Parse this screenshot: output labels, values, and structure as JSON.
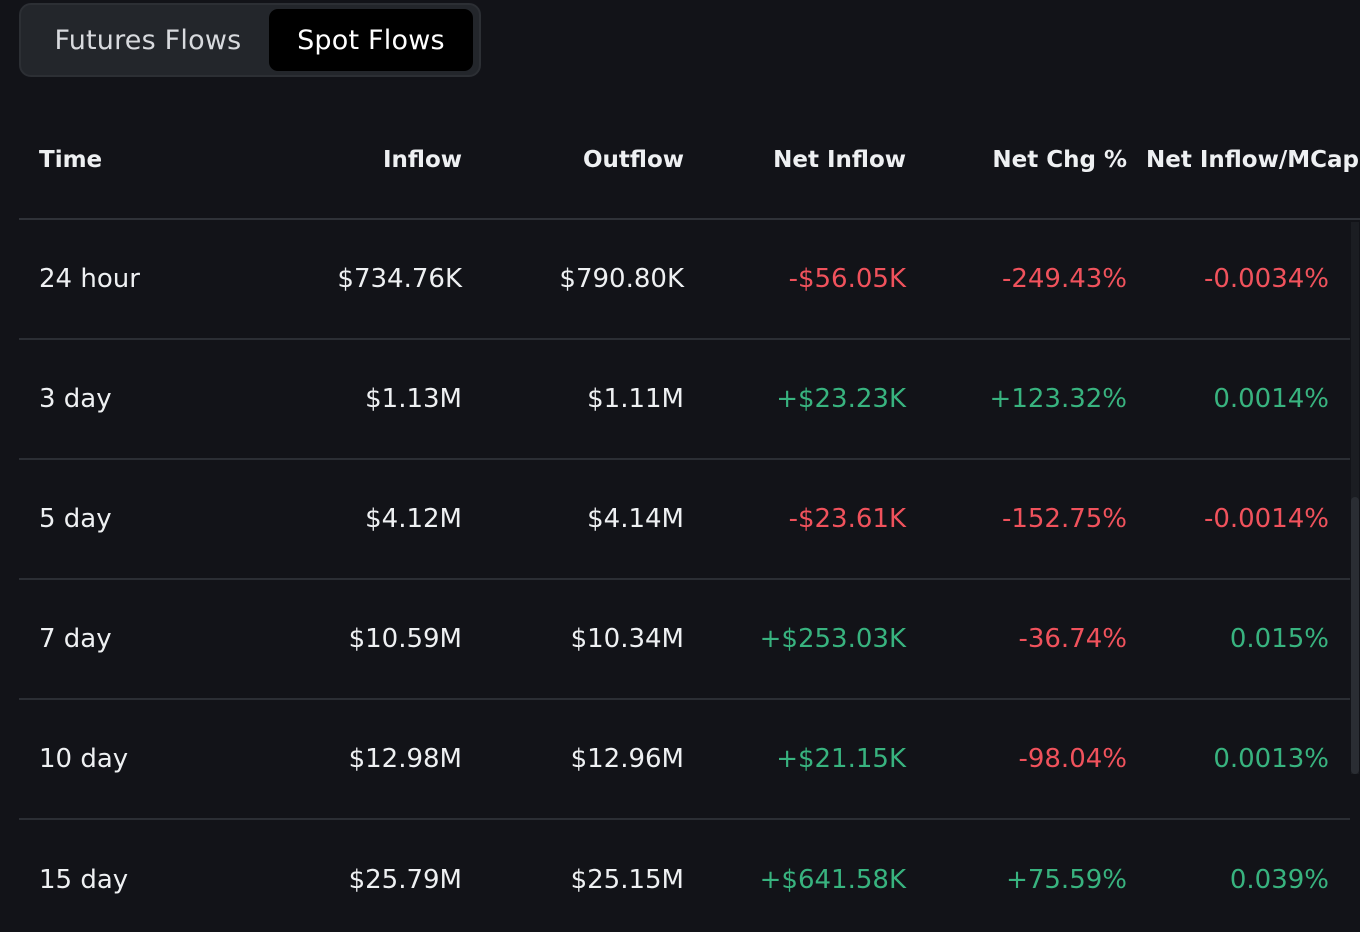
{
  "tabs": {
    "futures_label": "Futures Flows",
    "spot_label": "Spot Flows",
    "active": "Spot Flows"
  },
  "table": {
    "headers": {
      "time": "Time",
      "inflow": "Inflow",
      "outflow": "Outflow",
      "net_inflow": "Net Inflow",
      "net_chg": "Net Chg %",
      "net_inflow_mcap": "Net Inflow/MCap"
    },
    "rows": [
      {
        "time": "24 hour",
        "inflow": "$734.76K",
        "outflow": "$790.80K",
        "net_inflow": "-$56.05K",
        "net_chg": "-249.43%",
        "net_inflow_mcap": "-0.0034%"
      },
      {
        "time": "3 day",
        "inflow": "$1.13M",
        "outflow": "$1.11M",
        "net_inflow": "+$23.23K",
        "net_chg": "+123.32%",
        "net_inflow_mcap": "0.0014%"
      },
      {
        "time": "5 day",
        "inflow": "$4.12M",
        "outflow": "$4.14M",
        "net_inflow": "-$23.61K",
        "net_chg": "-152.75%",
        "net_inflow_mcap": "-0.0014%"
      },
      {
        "time": "7 day",
        "inflow": "$10.59M",
        "outflow": "$10.34M",
        "net_inflow": "+$253.03K",
        "net_chg": "-36.74%",
        "net_inflow_mcap": "0.015%"
      },
      {
        "time": "10 day",
        "inflow": "$12.98M",
        "outflow": "$12.96M",
        "net_inflow": "+$21.15K",
        "net_chg": "-98.04%",
        "net_inflow_mcap": "0.0013%"
      },
      {
        "time": "15 day",
        "inflow": "$25.79M",
        "outflow": "$25.15M",
        "net_inflow": "+$641.58K",
        "net_chg": "+75.59%",
        "net_inflow_mcap": "0.039%"
      }
    ]
  },
  "colors": {
    "background": "#121318",
    "positive": "#38b37f",
    "negative": "#f0525c",
    "text": "#eef0f2"
  }
}
